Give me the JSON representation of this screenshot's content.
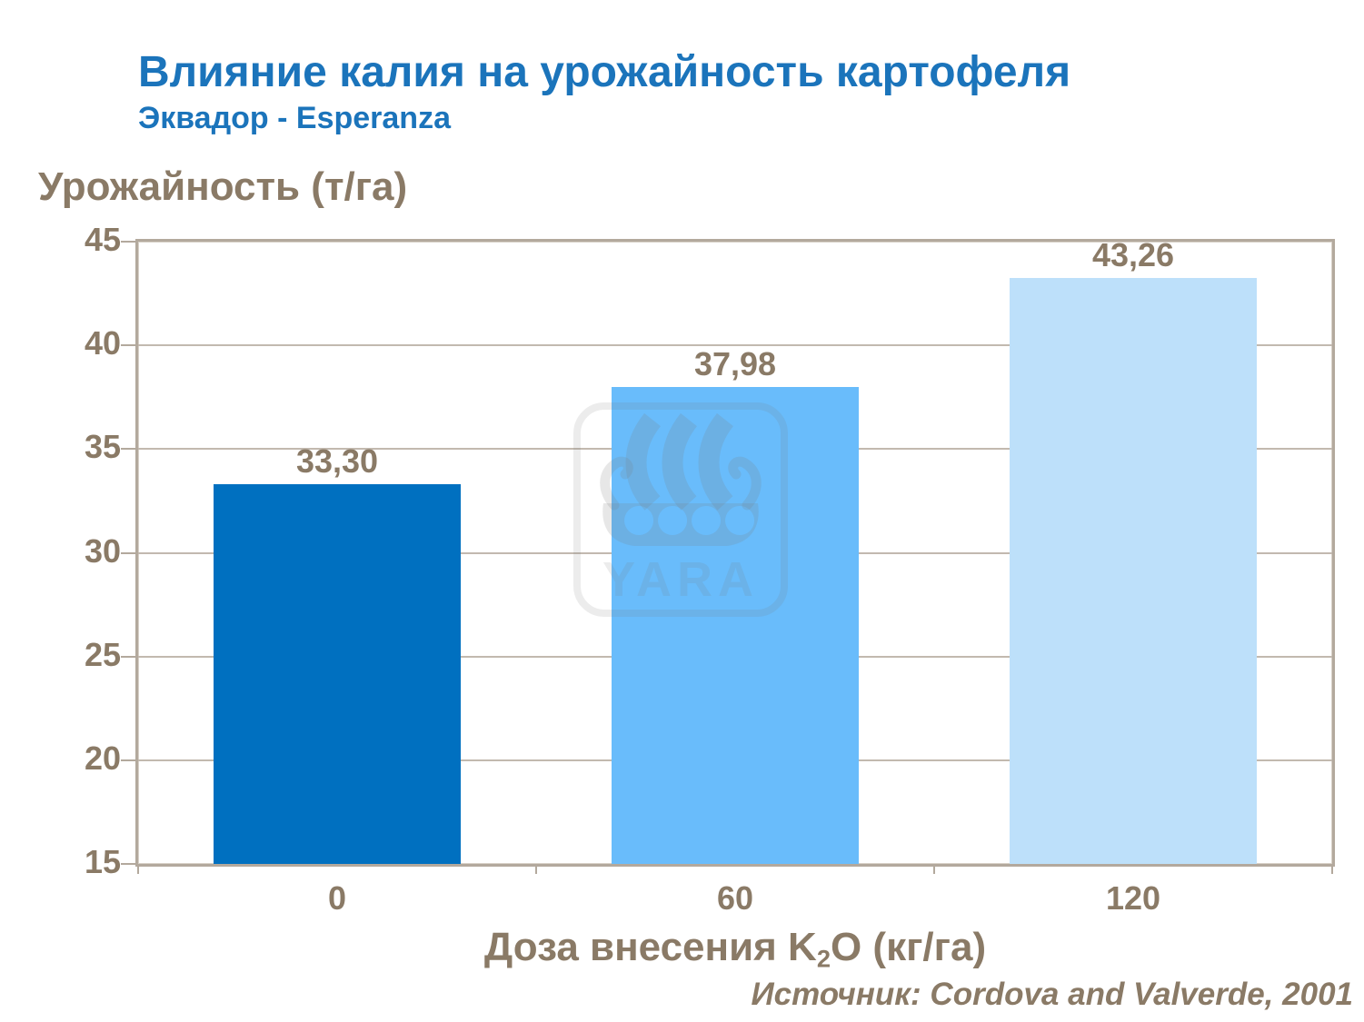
{
  "page": {
    "title": "Влияние калия на урожайность картофеля",
    "subtitle": "Эквадор - Esperanza",
    "source": "Источник: Cordova and Valverde, 2001"
  },
  "watermark": {
    "name": "yara-viking-ship-logo",
    "wordmark": "YARA"
  },
  "chart_data": {
    "type": "bar",
    "title": "Влияние калия на урожайность картофеля",
    "subtitle": "Эквадор - Esperanza",
    "categories": [
      "0",
      "60",
      "120"
    ],
    "values": [
      33.3,
      37.98,
      43.26
    ],
    "value_labels": [
      "33,30",
      "37,98",
      "43,26"
    ],
    "bar_colors": [
      "#0070C0",
      "#69BCFB",
      "#BDE0FA"
    ],
    "ylabel": "Урожайность (т/га)",
    "xlabel": "Доза внесения K₂O (кг/га)",
    "xlabel_parts": {
      "prefix": "Доза внесения K",
      "sub": "2",
      "suffix": "O (кг/га)"
    },
    "ylim": [
      15,
      45
    ],
    "yticks": [
      45,
      40,
      35,
      30,
      25,
      20,
      15
    ],
    "grid": "horizontal",
    "legend": "none",
    "source": "Источник: Cordova and Valverde, 2001",
    "title_color": "#1B74BB",
    "text_color": "#8A7A66",
    "axis_color": "#B3A99D",
    "gridline_color": "#C2B9AF"
  }
}
